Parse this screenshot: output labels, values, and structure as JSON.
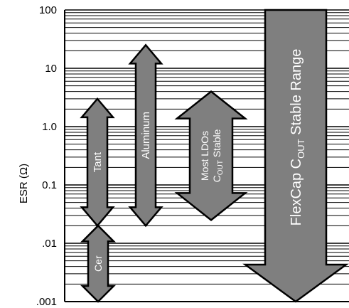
{
  "chart_data": {
    "type": "range-arrows",
    "ylabel": "ESR (Ω)",
    "yscale": "log",
    "ylim": [
      0.001,
      100
    ],
    "y_ticks": [
      {
        "value": 100,
        "label": "100"
      },
      {
        "value": 10,
        "label": "10"
      },
      {
        "value": 1,
        "label": "1.0"
      },
      {
        "value": 0.1,
        "label": "0.1"
      },
      {
        "value": 0.01,
        "label": ".01"
      },
      {
        "value": 0.001,
        "label": ".001"
      }
    ],
    "grid": true,
    "arrows": [
      {
        "name": "Cer",
        "label_lines": [
          "Cer"
        ],
        "low": 0.001,
        "high": 0.02
      },
      {
        "name": "Tant",
        "label_lines": [
          "Tant"
        ],
        "low": 0.02,
        "high": 3
      },
      {
        "name": "Aluminum",
        "label_lines": [
          "Aluminum"
        ],
        "low": 0.02,
        "high": 25
      },
      {
        "name": "Most LDOs COUT Stable",
        "label_lines": [
          "Most LDOs",
          "C",
          "OUT",
          " Stable"
        ],
        "low": 0.025,
        "high": 4
      },
      {
        "name": "FlexCap COUT Stable Range",
        "label_lines": [
          "FlexCap  C",
          "OUT",
          "  Stable Range"
        ],
        "low": 0.001,
        "high": 100
      }
    ],
    "colors": {
      "arrow_fill": "#7f7f7f",
      "arrow_stroke": "#000000",
      "grid": "#000000",
      "label_text": "#ffffff"
    }
  }
}
